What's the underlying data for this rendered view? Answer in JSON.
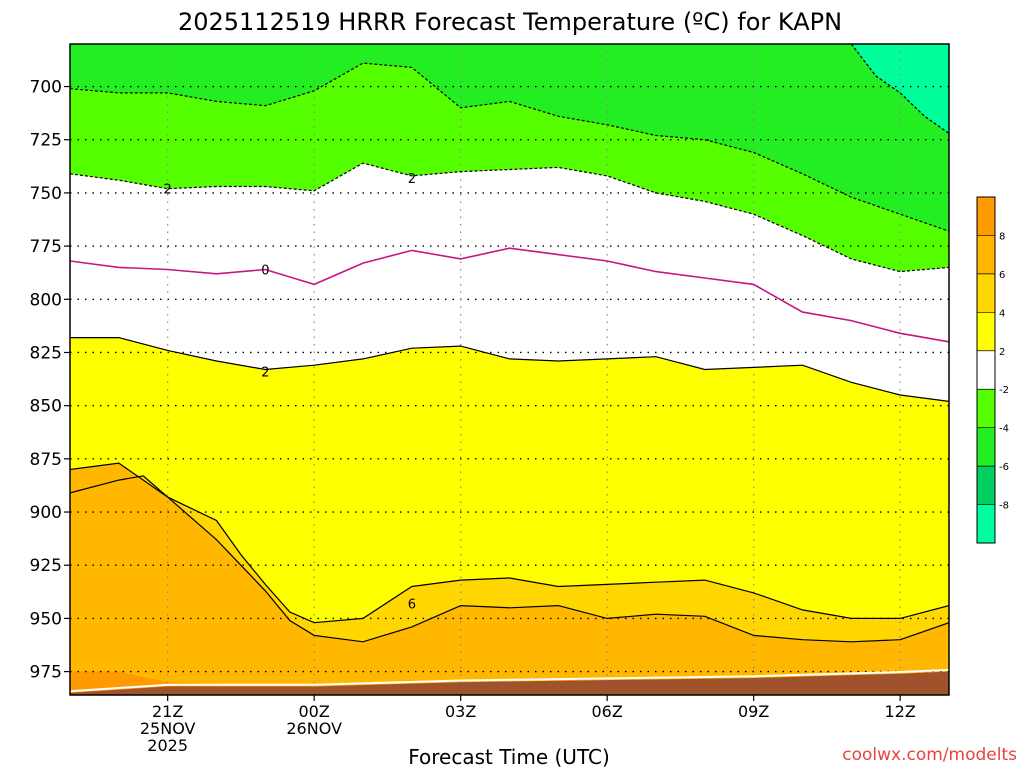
{
  "chart_data": {
    "type": "contour",
    "title": "2025112519 HRRR Forecast Temperature (ºC) for KAPN",
    "xlabel": "Forecast Time (UTC)",
    "ylabel": "",
    "credit": "coolwx.com/modelts",
    "x_ticks": [
      {
        "hour": 21,
        "lines": [
          "21Z",
          "25NOV",
          "2025"
        ]
      },
      {
        "hour": 24,
        "lines": [
          "00Z",
          "26NOV"
        ]
      },
      {
        "hour": 27,
        "lines": [
          "03Z"
        ]
      },
      {
        "hour": 30,
        "lines": [
          "06Z"
        ]
      },
      {
        "hour": 33,
        "lines": [
          "09Z"
        ]
      },
      {
        "hour": 36,
        "lines": [
          "12Z"
        ]
      }
    ],
    "xlim": [
      19,
      37
    ],
    "y_ticks": [
      700,
      725,
      750,
      775,
      800,
      825,
      850,
      875,
      900,
      925,
      950,
      975
    ],
    "ylim": [
      680,
      986
    ],
    "grid": true,
    "colorbar": {
      "labels": [
        "8",
        "6",
        "4",
        "2",
        "-2",
        "-4",
        "-6",
        "-8"
      ],
      "colors": [
        "#ff9a00",
        "#ffb700",
        "#ffd600",
        "#ffff00",
        "#ffffff",
        "#55ff00",
        "#22ee22",
        "#00d060",
        "#00ff9c"
      ]
    },
    "contours": [
      {
        "level": 4,
        "label": "",
        "fill": "#ffd600",
        "style": "solid",
        "points": [
          [
            19,
            891
          ],
          [
            20,
            885
          ],
          [
            20.5,
            883
          ],
          [
            21,
            893
          ],
          [
            22,
            904
          ],
          [
            22.5,
            920
          ],
          [
            23,
            934
          ],
          [
            23.5,
            947
          ],
          [
            24,
            952
          ],
          [
            25,
            950
          ],
          [
            26,
            935
          ],
          [
            27,
            932
          ],
          [
            28,
            931
          ],
          [
            29,
            935
          ],
          [
            30,
            934
          ],
          [
            31,
            933
          ],
          [
            32,
            932
          ],
          [
            33,
            938
          ],
          [
            34,
            946
          ],
          [
            35,
            950
          ],
          [
            36,
            950
          ],
          [
            37,
            944
          ]
        ]
      },
      {
        "level": 6,
        "label": "6",
        "label_at": [
          26,
          943
        ],
        "fill": "#ffb700",
        "style": "solid",
        "points": [
          [
            19,
            880
          ],
          [
            20,
            877
          ],
          [
            21,
            893
          ],
          [
            22,
            913
          ],
          [
            23,
            937
          ],
          [
            23.5,
            951
          ],
          [
            24,
            958
          ],
          [
            25,
            961
          ],
          [
            26,
            954
          ],
          [
            27,
            944
          ],
          [
            28,
            945
          ],
          [
            29,
            944
          ],
          [
            30,
            950
          ],
          [
            31,
            948
          ],
          [
            32,
            949
          ],
          [
            33,
            958
          ],
          [
            34,
            960
          ],
          [
            35,
            961
          ],
          [
            36,
            960
          ],
          [
            37,
            952
          ]
        ]
      },
      {
        "level": 8,
        "label": "",
        "fill": "#ff9a00",
        "style": "solid",
        "points": [
          [
            19,
            975
          ],
          [
            20,
            975
          ],
          [
            21,
            980
          ],
          [
            24,
            982
          ],
          [
            28,
            982
          ],
          [
            32,
            982
          ],
          [
            37,
            982
          ]
        ]
      },
      {
        "level": 2,
        "label": "2",
        "label_at": [
          23,
          834
        ],
        "fill": "#ffff00",
        "style": "solid",
        "points": [
          [
            19,
            818
          ],
          [
            20,
            818
          ],
          [
            21,
            824
          ],
          [
            22,
            829
          ],
          [
            23,
            833
          ],
          [
            24,
            831
          ],
          [
            25,
            828
          ],
          [
            26,
            823
          ],
          [
            27,
            822
          ],
          [
            28,
            828
          ],
          [
            29,
            829
          ],
          [
            30,
            828
          ],
          [
            31,
            827
          ],
          [
            32,
            833
          ],
          [
            33,
            832
          ],
          [
            34,
            831
          ],
          [
            35,
            839
          ],
          [
            36,
            845
          ],
          [
            37,
            848
          ]
        ]
      },
      {
        "level": 0,
        "label": "0",
        "label_at": [
          23,
          786
        ],
        "fill": "#ffffff",
        "style": "solid",
        "points": [
          [
            19,
            782
          ],
          [
            20,
            785
          ],
          [
            21,
            786
          ],
          [
            22,
            788
          ],
          [
            23,
            786
          ],
          [
            24,
            793
          ],
          [
            25,
            783
          ],
          [
            26,
            777
          ],
          [
            27,
            781
          ],
          [
            28,
            776
          ],
          [
            29,
            779
          ],
          [
            30,
            782
          ],
          [
            31,
            787
          ],
          [
            32,
            790
          ],
          [
            33,
            793
          ],
          [
            34,
            806
          ],
          [
            35,
            810
          ],
          [
            36,
            816
          ],
          [
            37,
            820
          ]
        ]
      },
      {
        "level": -2,
        "label": "2",
        "label_at": [
          21,
          748
        ],
        "label2": "2",
        "label2_at": [
          26,
          743
        ],
        "fill": "#55ff00",
        "style": "dashed",
        "points": [
          [
            19,
            741
          ],
          [
            20,
            744
          ],
          [
            21,
            748
          ],
          [
            22,
            747
          ],
          [
            23,
            747
          ],
          [
            24,
            749
          ],
          [
            25,
            736
          ],
          [
            26,
            742
          ],
          [
            27,
            740
          ],
          [
            28,
            739
          ],
          [
            29,
            738
          ],
          [
            30,
            742
          ],
          [
            31,
            750
          ],
          [
            32,
            754
          ],
          [
            33,
            760
          ],
          [
            34,
            770
          ],
          [
            35,
            781
          ],
          [
            36,
            787
          ],
          [
            37,
            785
          ]
        ]
      },
      {
        "level": -4,
        "label": "",
        "fill": "#22ee22",
        "style": "dashed",
        "points": [
          [
            19,
            701
          ],
          [
            20,
            703
          ],
          [
            21,
            703
          ],
          [
            22,
            707
          ],
          [
            23,
            709
          ],
          [
            24,
            702
          ],
          [
            25,
            689
          ],
          [
            26,
            691
          ],
          [
            27,
            710
          ],
          [
            28,
            707
          ],
          [
            29,
            714
          ],
          [
            30,
            718
          ],
          [
            31,
            723
          ],
          [
            32,
            725
          ],
          [
            33,
            731
          ],
          [
            34,
            741
          ],
          [
            35,
            752
          ],
          [
            36,
            760
          ],
          [
            37,
            768
          ]
        ]
      },
      {
        "level": -6,
        "label": "",
        "fill": "#00ff9c",
        "style": "dashed",
        "points": [
          [
            35,
            680
          ],
          [
            35.5,
            695
          ],
          [
            36,
            703
          ],
          [
            36.5,
            714
          ],
          [
            37,
            722
          ]
        ]
      }
    ],
    "terrain": {
      "color": "#a0522d",
      "points": [
        [
          19,
          985
        ],
        [
          21,
          982
        ],
        [
          24,
          982
        ],
        [
          27,
          980
        ],
        [
          30,
          979
        ],
        [
          33,
          978
        ],
        [
          36,
          976
        ],
        [
          37,
          975
        ]
      ]
    }
  }
}
